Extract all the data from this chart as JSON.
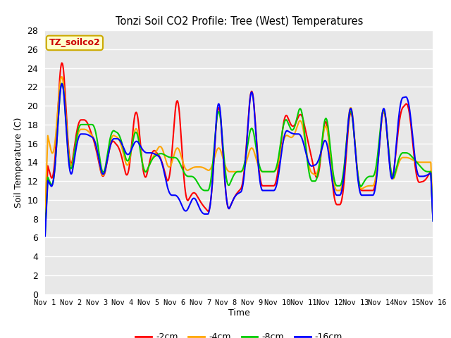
{
  "title": "Tonzi Soil CO2 Profile: Tree (West) Temperatures",
  "ylabel": "Soil Temperature (C)",
  "xlabel": "Time",
  "legend_label": "TZ_soilco2",
  "series_labels": [
    "-2cm",
    "-4cm",
    "-8cm",
    "-16cm"
  ],
  "series_colors": [
    "#ff0000",
    "#ffa500",
    "#00cc00",
    "#0000ff"
  ],
  "xtick_labels": [
    "Nov 1",
    "Nov 2",
    "Nov 3",
    "Nov 4",
    "Nov 5",
    "Nov 6",
    "Nov 7",
    "Nov 8",
    "Nov 9",
    "Nov 10",
    "Nov 11",
    "Nov 12",
    "Nov 13",
    "Nov 14",
    "Nov 15",
    "Nov 16"
  ],
  "ylim": [
    0,
    28
  ],
  "yticks": [
    0,
    2,
    4,
    6,
    8,
    10,
    12,
    14,
    16,
    18,
    20,
    22,
    24,
    26,
    28
  ],
  "bg_color": "#e8e8e8",
  "grid_color": "#ffffff",
  "legend_box_facecolor": "#ffffcc",
  "legend_box_edgecolor": "#ccaa00",
  "legend_text_color": "#cc0000",
  "cm2": [
    14.5,
    11.5,
    27.0,
    12.5,
    18.5,
    18.5,
    16.0,
    11.8,
    16.5,
    15.5,
    11.8,
    20.8,
    11.5,
    15.5,
    14.5,
    11.2,
    22.5,
    9.5,
    11.0,
    9.5,
    8.5,
    22.0,
    8.5,
    10.5,
    11.5,
    23.5,
    11.5,
    11.5,
    11.5,
    19.5,
    17.5,
    19.5,
    15.5,
    11.5,
    19.8,
    9.5,
    9.5,
    21.0,
    11.0,
    11.0,
    11.0,
    21.0,
    11.0,
    19.5,
    20.5,
    11.8,
    12.0,
    13.5
  ],
  "cm4": [
    18.0,
    14.0,
    25.0,
    12.5,
    17.5,
    17.5,
    16.5,
    11.8,
    17.0,
    16.5,
    13.0,
    18.5,
    12.5,
    14.5,
    16.0,
    13.0,
    16.0,
    13.0,
    13.5,
    13.5,
    13.0,
    16.0,
    13.0,
    13.0,
    13.0,
    16.0,
    13.0,
    13.0,
    13.0,
    17.0,
    16.5,
    19.0,
    13.0,
    12.5,
    19.0,
    11.0,
    11.0,
    21.5,
    11.0,
    11.5,
    11.5,
    21.0,
    11.5,
    14.5,
    14.5,
    14.0,
    14.0,
    14.0
  ],
  "cm8": [
    13.0,
    11.0,
    24.5,
    12.0,
    18.0,
    18.0,
    18.0,
    12.0,
    17.5,
    17.0,
    13.5,
    18.0,
    12.5,
    14.5,
    15.0,
    14.5,
    14.5,
    12.5,
    12.5,
    11.0,
    11.0,
    21.0,
    11.0,
    13.0,
    13.0,
    18.5,
    13.0,
    13.0,
    13.0,
    19.0,
    17.0,
    20.5,
    12.0,
    12.0,
    20.0,
    11.5,
    11.5,
    21.0,
    11.0,
    12.5,
    12.5,
    21.0,
    11.5,
    15.0,
    15.0,
    14.0,
    13.0,
    13.0
  ],
  "cm16": [
    12.5,
    11.0,
    24.5,
    11.5,
    17.0,
    17.0,
    16.5,
    12.0,
    16.5,
    16.5,
    14.5,
    16.5,
    15.0,
    15.0,
    14.5,
    10.5,
    10.5,
    8.5,
    10.5,
    8.5,
    8.5,
    22.5,
    8.5,
    10.5,
    11.0,
    23.5,
    11.0,
    11.0,
    11.0,
    17.5,
    17.0,
    17.0,
    13.5,
    13.8,
    17.0,
    10.5,
    10.5,
    21.5,
    10.5,
    10.5,
    10.5,
    21.5,
    10.5,
    20.8,
    21.0,
    12.5,
    12.5,
    13.0
  ]
}
